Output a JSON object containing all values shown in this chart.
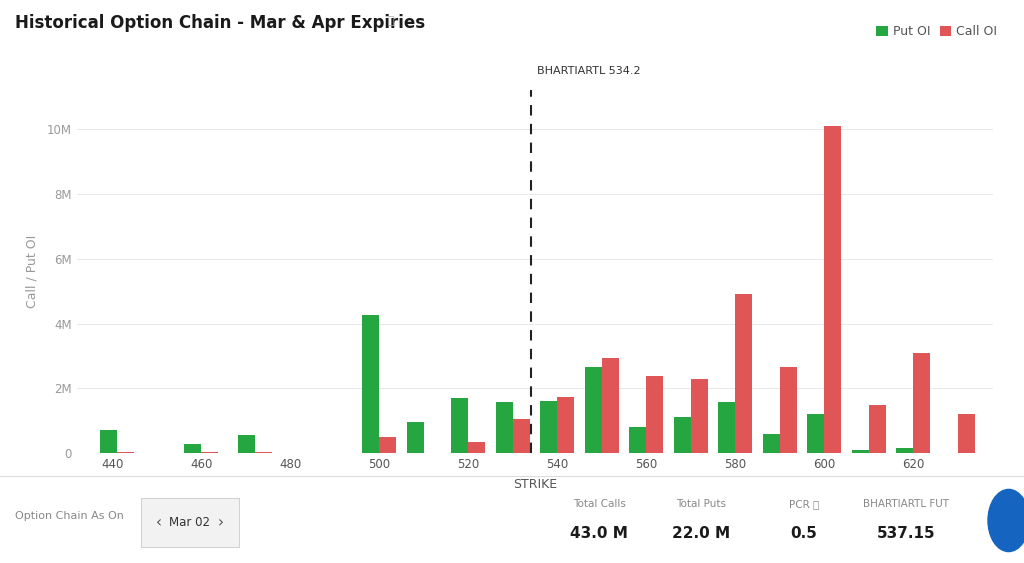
{
  "title": "Historical Option Chain - Mar & Apr Expiries",
  "xlabel": "STRIKE",
  "ylabel": "Call / Put OI",
  "vline_x": 534.2,
  "vline_label": "BHARTIARTL 534.2",
  "put_color": "#26a641",
  "call_color": "#e05555",
  "bg_color": "#ffffff",
  "grid_color": "#e8e8e8",
  "strike_labels": [
    440,
    460,
    480,
    500,
    520,
    540,
    560,
    580,
    600,
    620
  ],
  "yticks": [
    0,
    2000000,
    4000000,
    6000000,
    8000000,
    10000000
  ],
  "ytick_labels": [
    "0",
    "2M",
    "4M",
    "6M",
    "8M",
    "10M"
  ],
  "bar_width": 3.8,
  "title_fontsize": 12,
  "axis_label_fontsize": 9,
  "tick_fontsize": 8.5,
  "legend_fontsize": 9,
  "strikes_data": [
    {
      "strike": 441,
      "put": 720000,
      "call": 50000
    },
    {
      "strike": 460,
      "put": 270000,
      "call": 30000
    },
    {
      "strike": 472,
      "put": 550000,
      "call": 30000
    },
    {
      "strike": 500,
      "put": 4250000,
      "call": 500000
    },
    {
      "strike": 510,
      "put": 950000,
      "call": 0
    },
    {
      "strike": 520,
      "put": 1700000,
      "call": 350000
    },
    {
      "strike": 530,
      "put": 1570000,
      "call": 1070000
    },
    {
      "strike": 540,
      "put": 1600000,
      "call": 1720000
    },
    {
      "strike": 550,
      "put": 2650000,
      "call": 2950000
    },
    {
      "strike": 560,
      "put": 800000,
      "call": 2380000
    },
    {
      "strike": 570,
      "put": 1120000,
      "call": 2300000
    },
    {
      "strike": 580,
      "put": 1570000,
      "call": 4900000
    },
    {
      "strike": 590,
      "put": 600000,
      "call": 2650000
    },
    {
      "strike": 600,
      "put": 1200000,
      "call": 10100000
    },
    {
      "strike": 610,
      "put": 100000,
      "call": 1500000
    },
    {
      "strike": 620,
      "put": 170000,
      "call": 3100000
    },
    {
      "strike": 630,
      "put": 0,
      "call": 1200000
    }
  ]
}
